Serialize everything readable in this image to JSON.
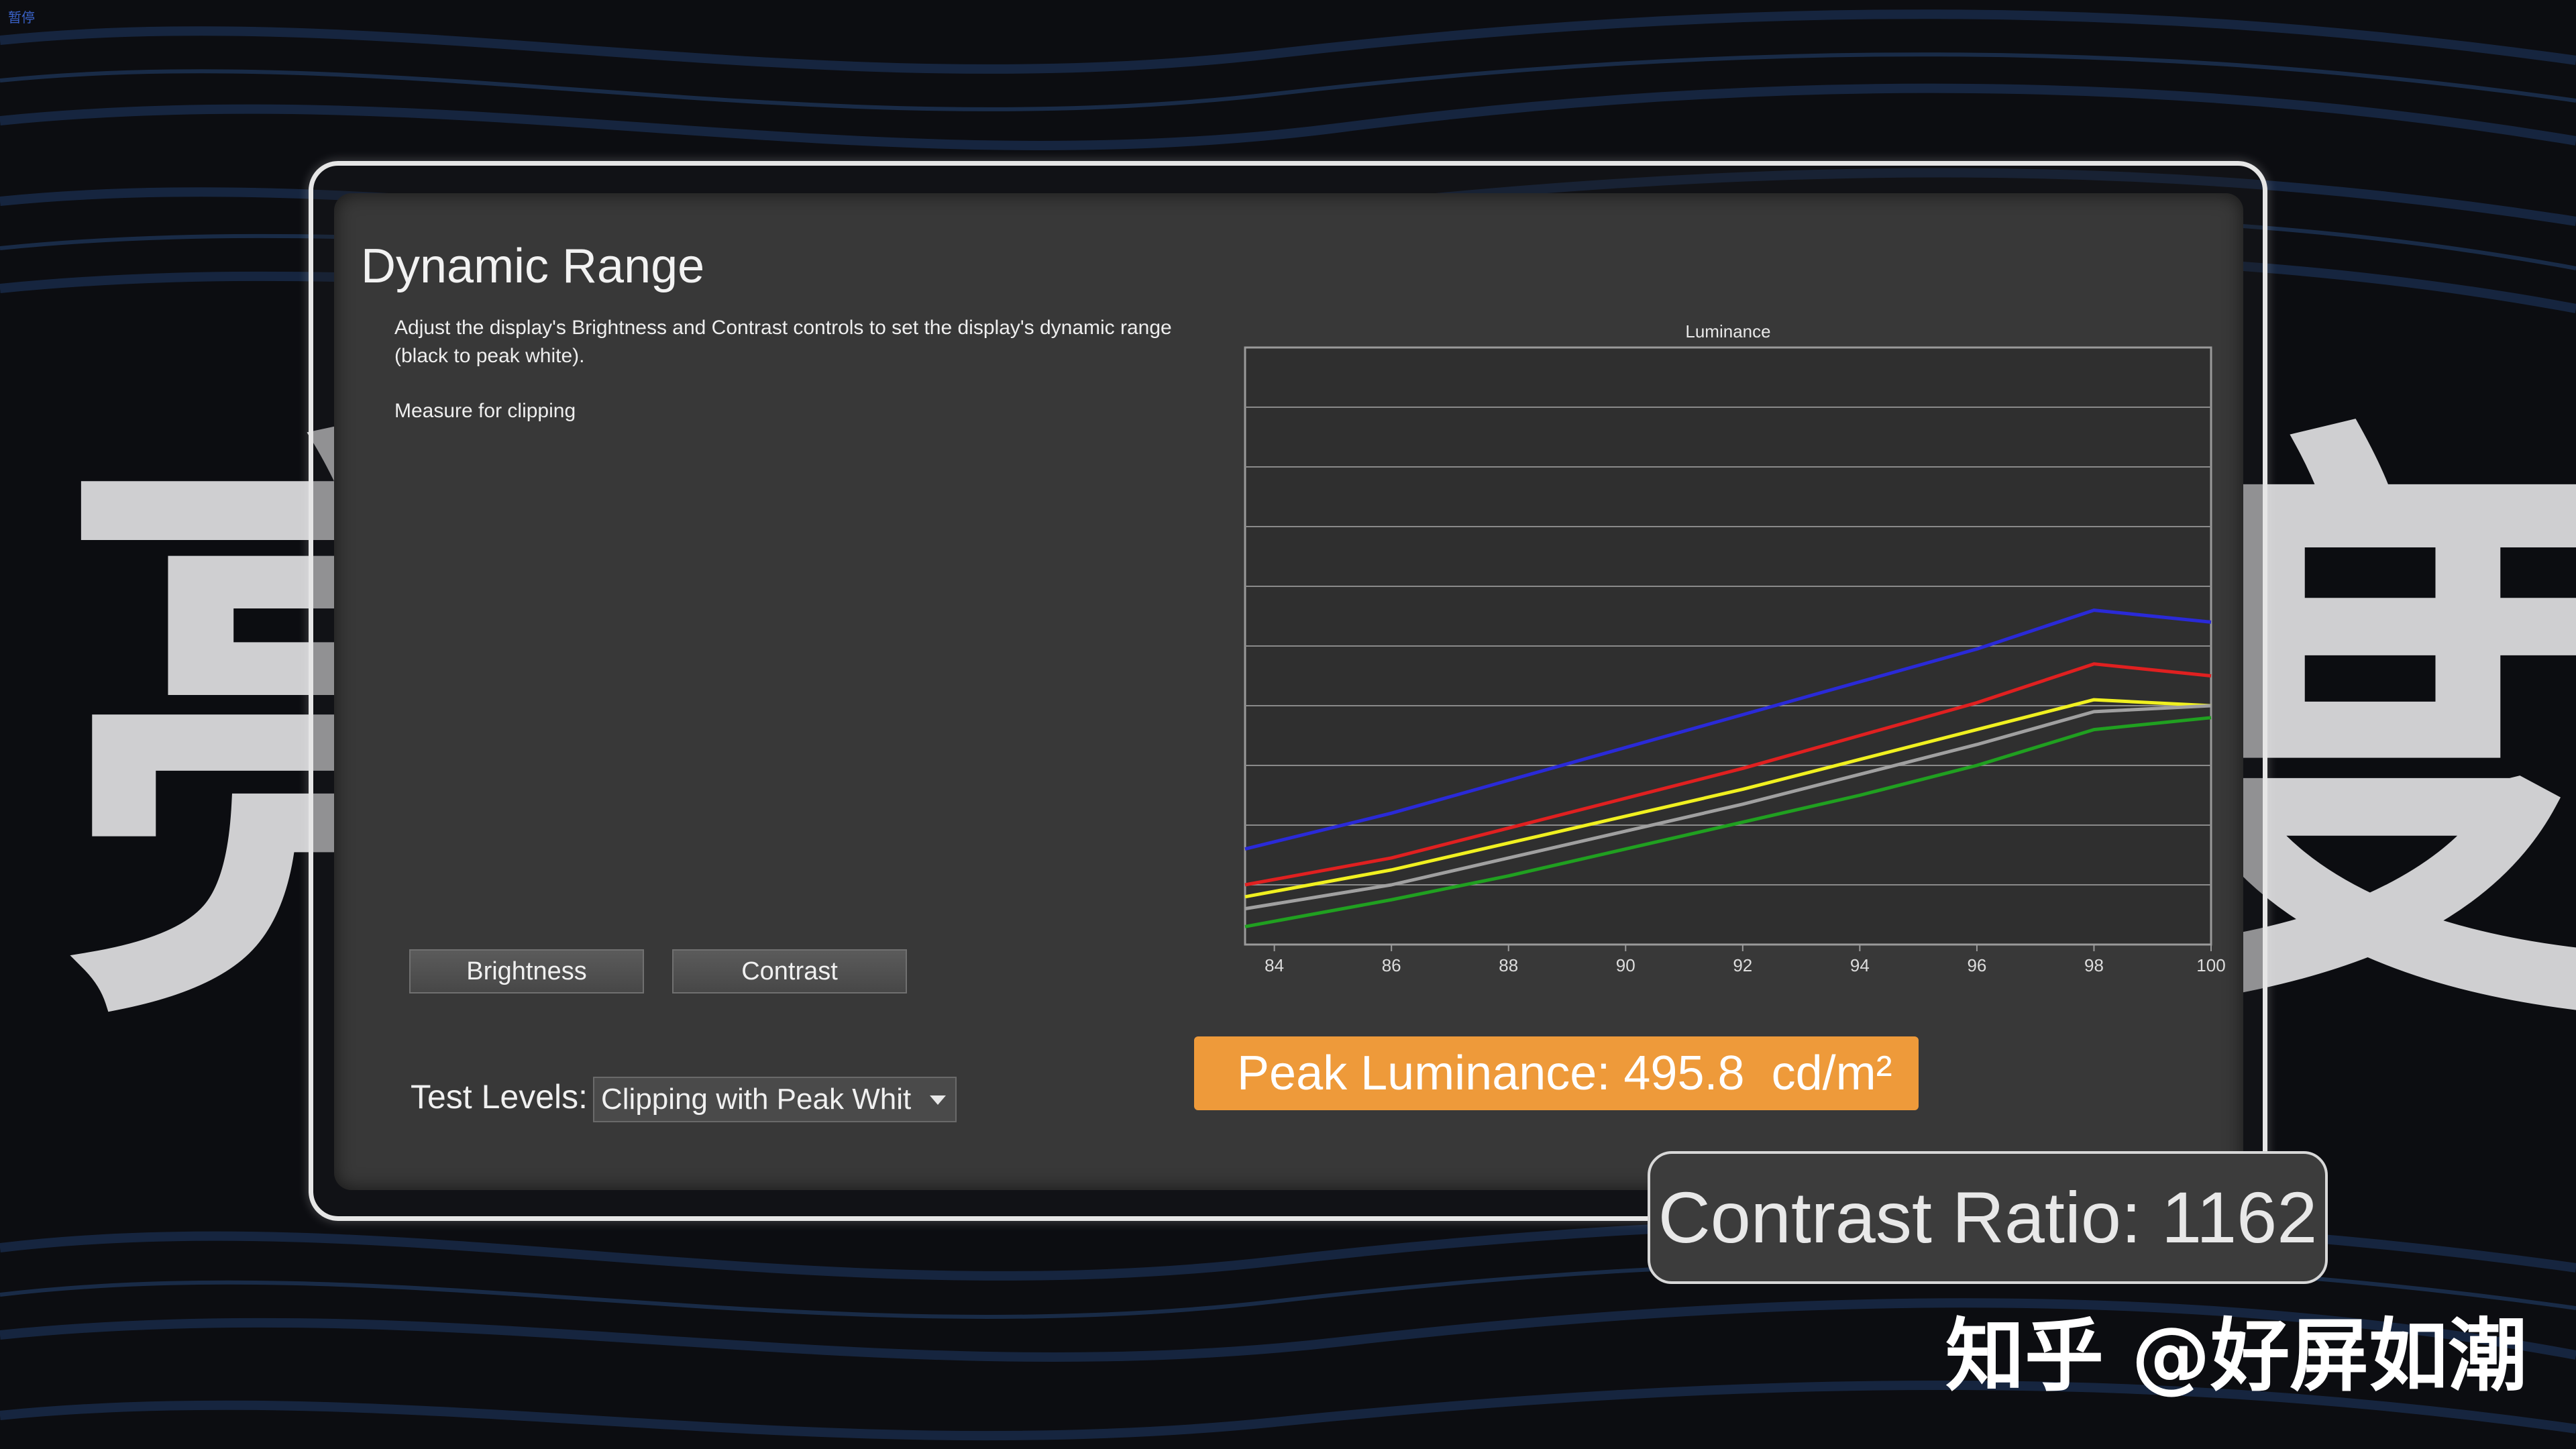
{
  "corner_label": "暂停",
  "background_chars": {
    "left": "亮",
    "right": "度"
  },
  "app": {
    "title": "Dynamic Range",
    "description": "Adjust the display's Brightness and Contrast controls to set the display's dynamic range (black to peak white).",
    "measure_label": "Measure for clipping",
    "buttons": {
      "brightness": "Brightness",
      "contrast": "Contrast"
    },
    "test_levels": {
      "label": "Test Levels:",
      "selected": "Clipping with Peak Whit"
    }
  },
  "peak_luminance": {
    "label": "Peak Luminance:",
    "value": "495.8",
    "unit": "cd/m²"
  },
  "contrast_ratio": {
    "label": "Contrast Ratio:",
    "value": "1162"
  },
  "watermark": "知乎 @好屏如潮",
  "colors": {
    "background": "#0c0d11",
    "panel": "#383838",
    "accent_orange": "#ee9a3a",
    "series_blue": "#2a2ad8",
    "series_red": "#e02020",
    "series_yellow": "#f0f020",
    "series_gray": "#a0a0a0",
    "series_green": "#20a020"
  },
  "chart_data": {
    "type": "line",
    "title": "Luminance",
    "xlabel": "",
    "ylabel": "",
    "xlim": [
      83.5,
      100
    ],
    "ylim": [
      0,
      10
    ],
    "x_ticks": [
      84,
      86,
      88,
      90,
      92,
      94,
      96,
      98,
      100
    ],
    "grid": true,
    "x": [
      83.5,
      86,
      88,
      90,
      92,
      94,
      96,
      98,
      100
    ],
    "series": [
      {
        "color": "blue",
        "values": [
          1.6,
          2.2,
          2.75,
          3.3,
          3.85,
          4.4,
          4.95,
          5.6,
          5.4
        ]
      },
      {
        "color": "red",
        "values": [
          1.0,
          1.45,
          1.95,
          2.45,
          2.95,
          3.5,
          4.05,
          4.7,
          4.5
        ]
      },
      {
        "color": "yellow",
        "values": [
          0.8,
          1.25,
          1.7,
          2.15,
          2.6,
          3.1,
          3.6,
          4.1,
          4.0
        ]
      },
      {
        "color": "gray",
        "values": [
          0.6,
          1.0,
          1.45,
          1.9,
          2.35,
          2.85,
          3.35,
          3.9,
          4.0
        ]
      },
      {
        "color": "green",
        "values": [
          0.3,
          0.75,
          1.15,
          1.6,
          2.05,
          2.5,
          3.0,
          3.6,
          3.8
        ]
      }
    ]
  }
}
